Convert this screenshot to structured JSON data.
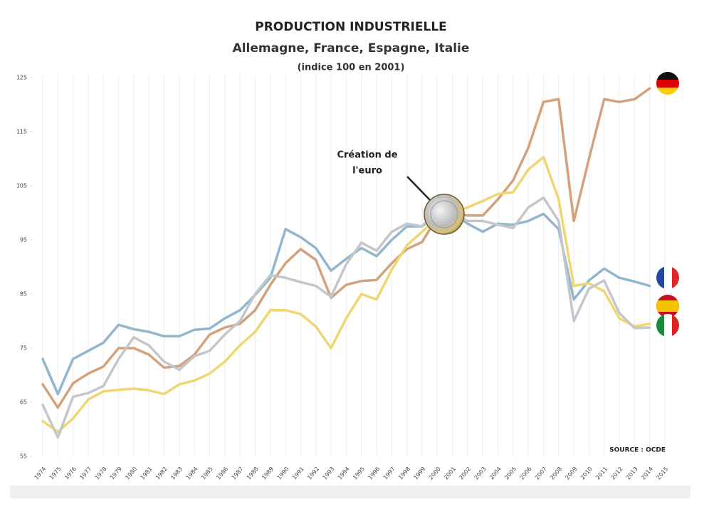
{
  "chart_data": {
    "type": "line",
    "title": "PRODUCTION INDUSTRIELLE",
    "subtitle": "Allemagne, France, Espagne, Italie",
    "note": "(indice 100 en 2001)",
    "annotation": [
      "Création de",
      "l'euro"
    ],
    "source": "SOURCE : OCDE",
    "categories": [
      "1974",
      "1975",
      "1976",
      "1977",
      "1978",
      "1979",
      "1980",
      "1981",
      "1982",
      "1983",
      "1984",
      "1985",
      "1986",
      "1987",
      "1988",
      "1989",
      "1990",
      "1991",
      "1992",
      "1993",
      "1994",
      "1995",
      "1996",
      "1997",
      "1998",
      "1999",
      "2000",
      "2001",
      "2002",
      "2003",
      "2004",
      "2005",
      "2006",
      "2007",
      "2008",
      "2009",
      "2010",
      "2011",
      "2012",
      "2013",
      "2014",
      "2015"
    ],
    "ylim": [
      55,
      125
    ],
    "yticks": [
      55,
      65,
      75,
      85,
      95,
      105,
      115,
      125
    ],
    "grid": true,
    "series": [
      {
        "color": "#d3a27c",
        "values": [
          68.3,
          64,
          68.5,
          70.3,
          71.6,
          75,
          75,
          73.8,
          71.4,
          71.7,
          73.8,
          77.5,
          78.8,
          79.5,
          82,
          86.7,
          90.7,
          93.3,
          91.3,
          84.3,
          86.7,
          87.4,
          87.6,
          90.7,
          93.3,
          94.6,
          99.2,
          100,
          99.5,
          99.5,
          102.5,
          106,
          112,
          120.5,
          121,
          98.5,
          110,
          121,
          120.5,
          121,
          123,
          null
        ]
      },
      {
        "color": "#92b6cb",
        "values": [
          73,
          66.5,
          73,
          74.5,
          76,
          79.3,
          78.5,
          78,
          77.2,
          77.2,
          78.4,
          78.6,
          80.5,
          82,
          84.8,
          88,
          97,
          95.5,
          93.5,
          89.3,
          91.5,
          93.5,
          92,
          95,
          97.5,
          97.5,
          99.5,
          100,
          98,
          96.5,
          98,
          97.8,
          98.5,
          99.8,
          97,
          84,
          87.5,
          89.7,
          88,
          87.3,
          86.5,
          null
        ]
      },
      {
        "color": "#f0d670",
        "values": [
          61.5,
          59.5,
          62,
          65.5,
          67,
          67.3,
          67.5,
          67.2,
          66.5,
          68.3,
          69,
          70.3,
          72.5,
          75.5,
          78,
          82,
          82,
          81.3,
          79,
          75,
          80.5,
          85,
          84,
          89.5,
          94,
          96.5,
          99,
          100,
          101,
          102.2,
          103.5,
          103.8,
          108,
          110.3,
          102.5,
          86.5,
          87,
          85.5,
          80.5,
          79,
          79.5,
          null
        ]
      },
      {
        "color": "#c3c7cb",
        "values": [
          64.5,
          58.5,
          66,
          66.7,
          68,
          73,
          77,
          75.5,
          72.5,
          71,
          73.5,
          74.5,
          77.5,
          80,
          85,
          88.5,
          88,
          87.2,
          86.5,
          84.5,
          90.5,
          94.5,
          93,
          96.5,
          98,
          97.5,
          100.5,
          100,
          98.5,
          98.5,
          97.8,
          97.2,
          101,
          102.8,
          98.5,
          80,
          86,
          87.5,
          81.5,
          78.7,
          78.8,
          null
        ]
      }
    ]
  }
}
